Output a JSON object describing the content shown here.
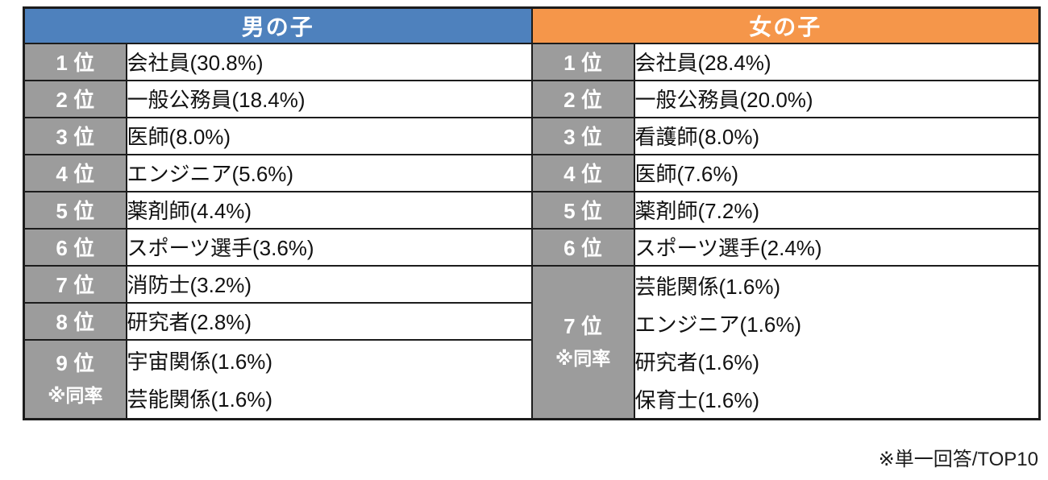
{
  "boys": {
    "header": "男の子",
    "rows": [
      {
        "rank": "1 位",
        "job": "会社員(30.8%)"
      },
      {
        "rank": "2 位",
        "job": "一般公務員(18.4%)"
      },
      {
        "rank": "3 位",
        "job": "医師(8.0%)"
      },
      {
        "rank": "4 位",
        "job": "エンジニア(5.6%)"
      },
      {
        "rank": "5 位",
        "job": "薬剤師(4.4%)"
      },
      {
        "rank": "6 位",
        "job": "スポーツ選手(3.6%)"
      },
      {
        "rank": "7 位",
        "job": "消防士(3.2%)"
      },
      {
        "rank": "8 位",
        "job": "研究者(2.8%)"
      }
    ],
    "tied": {
      "rank": "9 位",
      "note": "※同率",
      "jobs": [
        "宇宙関係(1.6%)",
        "芸能関係(1.6%)"
      ]
    }
  },
  "girls": {
    "header": "女の子",
    "rows": [
      {
        "rank": "1 位",
        "job": "会社員(28.4%)"
      },
      {
        "rank": "2 位",
        "job": "一般公務員(20.0%)"
      },
      {
        "rank": "3 位",
        "job": "看護師(8.0%)"
      },
      {
        "rank": "4 位",
        "job": "医師(7.6%)"
      },
      {
        "rank": "5 位",
        "job": "薬剤師(7.2%)"
      },
      {
        "rank": "6 位",
        "job": "スポーツ選手(2.4%)"
      }
    ],
    "tied": {
      "rank": "7 位",
      "note": "※同率",
      "jobs": [
        "芸能関係(1.6%)",
        "エンジニア(1.6%)",
        "研究者(1.6%)",
        "保育士(1.6%)"
      ]
    }
  },
  "footnote": "※単一回答/TOP10",
  "colors": {
    "boys_header_bg": "#4E81BD",
    "girls_header_bg": "#F5964A",
    "rank_cell_bg": "#9C9C9C",
    "value_cell_bg": "#FFFFFF",
    "border": "#1C1C1C",
    "header_text": "#FFFFFF",
    "rank_text": "#FFFFFF",
    "value_text": "#111111"
  },
  "chart_data": {
    "type": "table",
    "note": "※単一回答/TOP10",
    "series": [
      {
        "name": "男の子",
        "entries": [
          {
            "rank": 1,
            "job": "会社員",
            "percent": 30.8
          },
          {
            "rank": 2,
            "job": "一般公務員",
            "percent": 18.4
          },
          {
            "rank": 3,
            "job": "医師",
            "percent": 8.0
          },
          {
            "rank": 4,
            "job": "エンジニア",
            "percent": 5.6
          },
          {
            "rank": 5,
            "job": "薬剤師",
            "percent": 4.4
          },
          {
            "rank": 6,
            "job": "スポーツ選手",
            "percent": 3.6
          },
          {
            "rank": 7,
            "job": "消防士",
            "percent": 3.2
          },
          {
            "rank": 8,
            "job": "研究者",
            "percent": 2.8
          },
          {
            "rank": 9,
            "job": "宇宙関係",
            "percent": 1.6,
            "tied": true
          },
          {
            "rank": 9,
            "job": "芸能関係",
            "percent": 1.6,
            "tied": true
          }
        ]
      },
      {
        "name": "女の子",
        "entries": [
          {
            "rank": 1,
            "job": "会社員",
            "percent": 28.4
          },
          {
            "rank": 2,
            "job": "一般公務員",
            "percent": 20.0
          },
          {
            "rank": 3,
            "job": "看護師",
            "percent": 8.0
          },
          {
            "rank": 4,
            "job": "医師",
            "percent": 7.6
          },
          {
            "rank": 5,
            "job": "薬剤師",
            "percent": 7.2
          },
          {
            "rank": 6,
            "job": "スポーツ選手",
            "percent": 2.4
          },
          {
            "rank": 7,
            "job": "芸能関係",
            "percent": 1.6,
            "tied": true
          },
          {
            "rank": 7,
            "job": "エンジニア",
            "percent": 1.6,
            "tied": true
          },
          {
            "rank": 7,
            "job": "研究者",
            "percent": 1.6,
            "tied": true
          },
          {
            "rank": 7,
            "job": "保育士",
            "percent": 1.6,
            "tied": true
          }
        ]
      }
    ]
  }
}
